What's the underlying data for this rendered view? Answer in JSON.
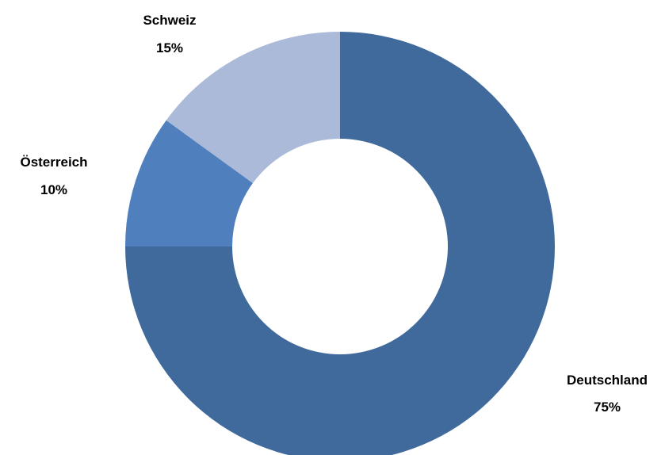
{
  "chart_data": {
    "type": "pie",
    "variant": "donut",
    "legend": "none",
    "slices": [
      {
        "label": "Deutschland",
        "value": 75,
        "value_label": "75%",
        "color": "#416a9c"
      },
      {
        "label": "Österreich",
        "value": 10,
        "value_label": "10%",
        "color": "#4f80bd"
      },
      {
        "label": "Schweiz",
        "value": 15,
        "value_label": "15%",
        "color": "#aabad8"
      }
    ]
  }
}
